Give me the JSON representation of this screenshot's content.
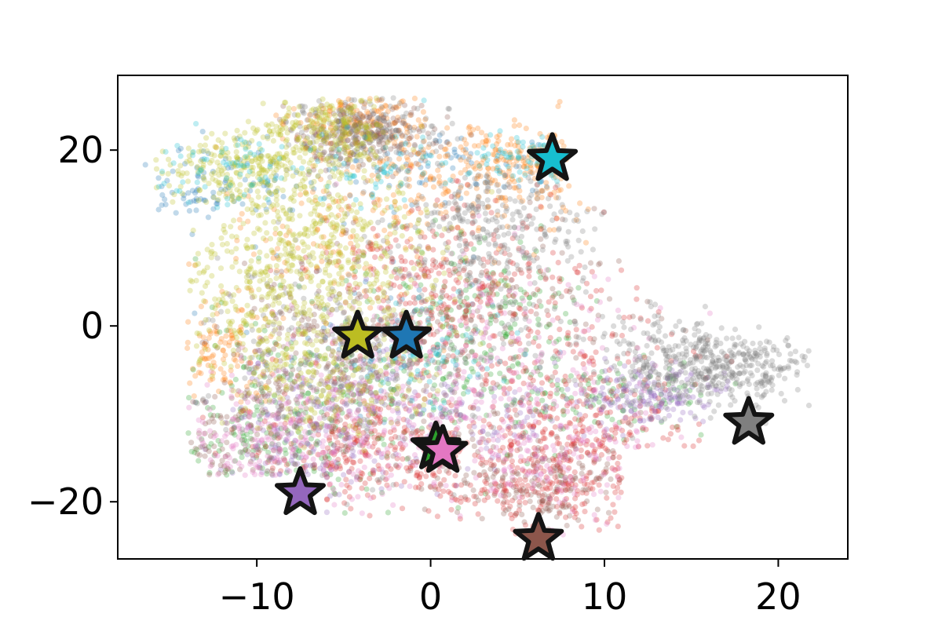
{
  "chart_data": {
    "type": "scatter",
    "title": "",
    "xlabel": "",
    "ylabel": "",
    "xlim": [
      -18,
      24
    ],
    "ylim": [
      -26.5,
      28.5
    ],
    "xticks": [
      -10,
      0,
      10,
      20
    ],
    "yticks": [
      -20,
      0,
      20
    ],
    "xtick_labels": [
      "−10",
      "0",
      "10",
      "20"
    ],
    "ytick_labels": [
      "−20",
      "0",
      "20"
    ],
    "grid": false,
    "legend": "none",
    "clusters": [
      {
        "color": "#1f77b4",
        "points": 220,
        "regions": [
          [
            -14,
            15,
            1.5,
            2
          ],
          [
            -10,
            17,
            2.5,
            2.5
          ],
          [
            -2,
            0,
            4,
            6
          ],
          [
            2,
            18,
            3,
            2
          ]
        ]
      },
      {
        "color": "#ff7f0e",
        "points": 700,
        "regions": [
          [
            -2,
            20,
            3,
            3
          ],
          [
            3,
            15,
            4,
            3
          ],
          [
            -6,
            10,
            3,
            5
          ],
          [
            -12,
            -3,
            1.5,
            3
          ],
          [
            -4,
            24,
            2,
            1.5
          ],
          [
            5,
            19,
            2,
            2
          ]
        ]
      },
      {
        "color": "#2ca02c",
        "points": 600,
        "regions": [
          [
            -8,
            -8,
            4,
            6
          ],
          [
            0,
            -5,
            4,
            6
          ],
          [
            4,
            2,
            3,
            4
          ],
          [
            10,
            -8,
            3,
            2
          ],
          [
            -10,
            -15,
            3,
            3
          ]
        ]
      },
      {
        "color": "#d62728",
        "points": 1200,
        "regions": [
          [
            6,
            -18,
            4,
            3
          ],
          [
            5,
            -2,
            5,
            8
          ],
          [
            8,
            -12,
            3,
            4
          ],
          [
            0,
            5,
            3,
            5
          ],
          [
            -4,
            -14,
            3,
            3
          ]
        ]
      },
      {
        "color": "#9467bd",
        "points": 500,
        "regions": [
          [
            13,
            -8,
            2,
            1.5
          ],
          [
            -8,
            -15,
            3,
            4
          ],
          [
            -5,
            -8,
            3,
            5
          ],
          [
            4,
            -10,
            4,
            3
          ]
        ]
      },
      {
        "color": "#8c564b",
        "points": 900,
        "regions": [
          [
            6,
            -18,
            3,
            3
          ],
          [
            4,
            0,
            5,
            8
          ],
          [
            -4,
            22,
            2,
            2
          ],
          [
            -6,
            -3,
            3,
            4
          ],
          [
            -10,
            -12,
            3,
            4
          ]
        ]
      },
      {
        "color": "#e377c2",
        "points": 700,
        "regions": [
          [
            0,
            -12,
            4,
            4
          ],
          [
            -6,
            -10,
            4,
            5
          ],
          [
            4,
            -3,
            4,
            6
          ],
          [
            -10,
            -14,
            2,
            3
          ],
          [
            8,
            -15,
            3,
            3
          ]
        ]
      },
      {
        "color": "#7f7f7f",
        "points": 1300,
        "regions": [
          [
            18,
            -5,
            2,
            2
          ],
          [
            14,
            -4,
            2,
            2.5
          ],
          [
            2,
            2,
            6,
            8
          ],
          [
            -6,
            -5,
            4,
            6
          ],
          [
            4,
            12,
            3,
            3
          ],
          [
            -4,
            22,
            2,
            2
          ]
        ]
      },
      {
        "color": "#bcbd22",
        "points": 1300,
        "regions": [
          [
            -10,
            18,
            2.5,
            2
          ],
          [
            -7,
            12,
            3,
            4
          ],
          [
            -10,
            3,
            2.5,
            5
          ],
          [
            -4,
            5,
            3,
            5
          ],
          [
            -6,
            -5,
            3,
            4
          ],
          [
            -6,
            22,
            2,
            2
          ]
        ]
      },
      {
        "color": "#17becf",
        "points": 260,
        "regions": [
          [
            5,
            19,
            1.5,
            1.5
          ],
          [
            -12,
            18,
            2,
            2
          ],
          [
            -3,
            18,
            3,
            2
          ],
          [
            0,
            -3,
            2,
            3
          ]
        ]
      }
    ],
    "stars": [
      {
        "x": 7.0,
        "y": 19.0,
        "color": "#17becf"
      },
      {
        "x": -4.2,
        "y": -1.2,
        "color": "#bcbd22"
      },
      {
        "x": -1.4,
        "y": -1.2,
        "color": "#1f77b4"
      },
      {
        "x": 18.3,
        "y": -11.0,
        "color": "#7f7f7f"
      },
      {
        "x": 0.3,
        "y": -13.8,
        "color": "#2ca02c"
      },
      {
        "x": 0.7,
        "y": -14.2,
        "color": "#e377c2"
      },
      {
        "x": -7.5,
        "y": -19.0,
        "color": "#9467bd"
      },
      {
        "x": 6.2,
        "y": -24.2,
        "color": "#8c564b"
      }
    ]
  }
}
